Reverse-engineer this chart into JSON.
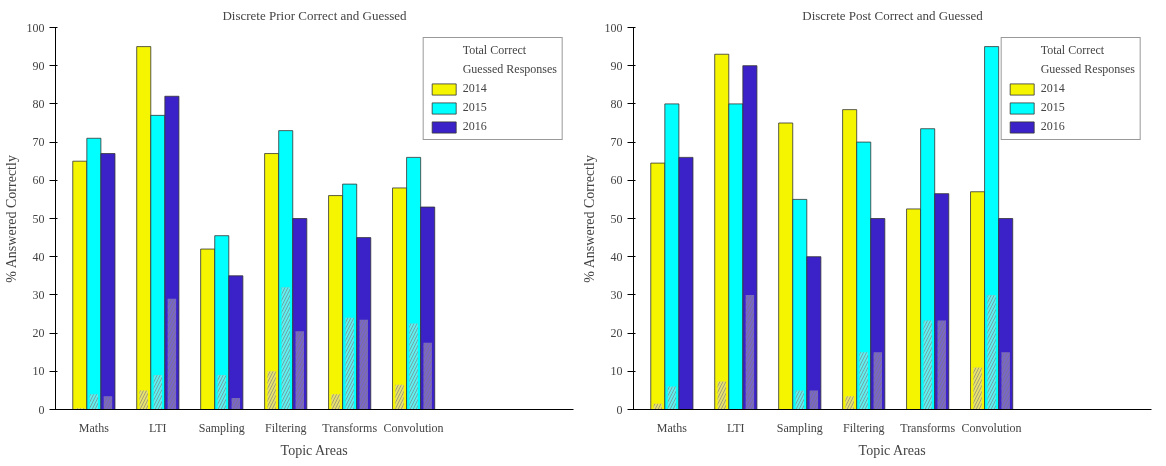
{
  "chart_data": [
    {
      "type": "bar",
      "title": "Discrete Prior Correct and Guessed",
      "xlabel": "Topic Areas",
      "ylabel": "% Answered Correctly",
      "categories": [
        "Maths",
        "LTI",
        "Sampling",
        "Filtering",
        "Transforms",
        "Convolution"
      ],
      "ylim": [
        0,
        100
      ],
      "yticks": [
        0,
        10,
        20,
        30,
        40,
        50,
        60,
        70,
        80,
        90,
        100
      ],
      "legend": "top right",
      "grid": false,
      "annotations": [
        "Total Correct",
        "Guessed Responses"
      ],
      "series": [
        {
          "name": "2014",
          "color": "#f5f500",
          "values": [
            65,
            95,
            42,
            67,
            56,
            58
          ]
        },
        {
          "name": "2015",
          "color": "#00ffff",
          "values": [
            71,
            77,
            45.5,
            73,
            59,
            66
          ]
        },
        {
          "name": "2016",
          "color": "#3a22c8",
          "values": [
            67,
            82,
            35,
            50,
            45,
            53
          ]
        },
        {
          "color": "#e6e070",
          "values": [
            0.3,
            5,
            0,
            10,
            4,
            6.5
          ]
        },
        {
          "color": "#60eeee",
          "values": [
            4,
            9,
            9,
            32,
            24,
            22.5
          ]
        },
        {
          "color": "#7a66c8",
          "values": [
            3.5,
            29,
            3,
            20.5,
            23.5,
            17.5
          ]
        }
      ]
    },
    {
      "type": "bar",
      "title": "Discrete Post Correct and Guessed",
      "xlabel": "Topic Areas",
      "ylabel": "% Answered Correctly",
      "categories": [
        "Maths",
        "LTI",
        "Sampling",
        "Filtering",
        "Transforms",
        "Convolution"
      ],
      "ylim": [
        0,
        100
      ],
      "yticks": [
        0,
        10,
        20,
        30,
        40,
        50,
        60,
        70,
        80,
        90,
        100
      ],
      "legend": "top right",
      "grid": false,
      "annotations": [
        "Total Correct",
        "Guessed Responses"
      ],
      "series": [
        {
          "name": "2014",
          "color": "#f5f500",
          "values": [
            64.5,
            93,
            75,
            78.5,
            52.5,
            57
          ]
        },
        {
          "name": "2015",
          "color": "#00ffff",
          "values": [
            80,
            80,
            55,
            70,
            73.5,
            95
          ]
        },
        {
          "name": "2016",
          "color": "#3a22c8",
          "values": [
            66,
            90,
            40,
            50,
            56.5,
            50
          ]
        },
        {
          "color": "#e6e070",
          "values": [
            1.5,
            7.3,
            0,
            3.5,
            0,
            11
          ]
        },
        {
          "color": "#60eeee",
          "values": [
            6,
            0,
            5,
            15,
            23.3,
            30
          ]
        },
        {
          "color": "#7a66c8",
          "values": [
            0,
            30,
            5,
            15,
            23.3,
            15
          ]
        }
      ]
    }
  ]
}
